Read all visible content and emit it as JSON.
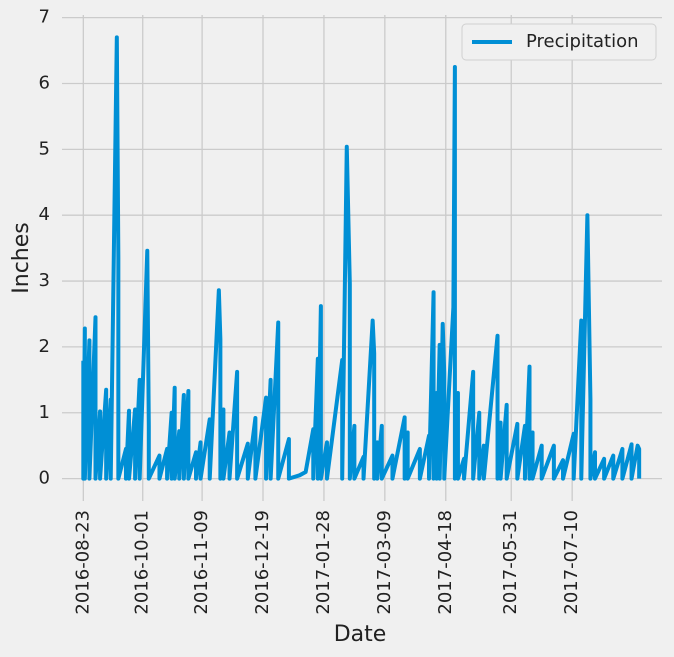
{
  "chart_data": {
    "type": "line",
    "x_label": "Date",
    "y_label": "Inches",
    "series": [
      {
        "name": "Precipitation",
        "color": "#008fd5",
        "x": [
          "2016-08-23",
          "2016-08-23",
          "2016-08-24",
          "2016-08-24",
          "2016-08-27",
          "2016-08-27",
          "2016-08-31",
          "2016-08-31",
          "2016-09-03",
          "2016-09-03",
          "2016-09-07",
          "2016-09-07",
          "2016-09-10",
          "2016-09-10",
          "2016-09-14",
          "2016-09-15",
          "2016-09-15",
          "2016-09-20",
          "2016-09-20",
          "2016-09-22",
          "2016-09-22",
          "2016-09-26",
          "2016-09-26",
          "2016-09-29",
          "2016-09-29",
          "2016-10-04",
          "2016-10-05",
          "2016-10-05",
          "2016-10-12",
          "2016-10-12",
          "2016-10-17",
          "2016-10-17",
          "2016-10-20",
          "2016-10-20",
          "2016-10-22",
          "2016-10-22",
          "2016-10-25",
          "2016-10-25",
          "2016-10-28",
          "2016-10-28",
          "2016-10-31",
          "2016-10-31",
          "2016-11-05",
          "2016-11-05",
          "2016-11-08",
          "2016-11-08",
          "2016-11-14",
          "2016-11-14",
          "2016-11-20",
          "2016-11-21",
          "2016-11-21",
          "2016-11-23",
          "2016-11-23",
          "2016-11-27",
          "2016-11-27",
          "2016-12-01",
          "2016-12-02",
          "2016-12-02",
          "2016-12-09",
          "2016-12-09",
          "2016-12-14",
          "2016-12-14",
          "2016-12-21",
          "2016-12-21",
          "2016-12-24",
          "2016-12-24",
          "2016-12-29",
          "2016-12-29",
          "2017-01-05",
          "2017-01-05",
          "2017-01-12",
          "2017-01-16",
          "2017-01-21",
          "2017-01-21",
          "2017-01-24",
          "2017-01-24",
          "2017-01-26",
          "2017-01-26",
          "2017-01-30",
          "2017-01-30",
          "2017-02-09",
          "2017-02-09",
          "2017-02-12",
          "2017-02-14",
          "2017-02-14",
          "2017-02-17",
          "2017-02-17",
          "2017-02-23",
          "2017-02-23",
          "2017-03-01",
          "2017-03-02",
          "2017-03-02",
          "2017-03-04",
          "2017-03-04",
          "2017-03-07",
          "2017-03-07",
          "2017-03-14",
          "2017-03-14",
          "2017-03-22",
          "2017-03-22",
          "2017-03-24",
          "2017-03-24",
          "2017-04-01",
          "2017-04-01",
          "2017-04-07",
          "2017-04-07",
          "2017-04-10",
          "2017-04-10",
          "2017-04-12",
          "2017-04-12",
          "2017-04-14",
          "2017-04-14",
          "2017-04-16",
          "2017-04-17",
          "2017-04-17",
          "2017-04-23",
          "2017-04-24",
          "2017-04-24",
          "2017-04-26",
          "2017-04-26",
          "2017-04-30",
          "2017-04-30",
          "2017-05-06",
          "2017-05-06",
          "2017-05-10",
          "2017-05-10",
          "2017-05-13",
          "2017-05-13",
          "2017-05-22",
          "2017-05-22",
          "2017-05-24",
          "2017-05-24",
          "2017-05-28",
          "2017-05-28",
          "2017-06-04",
          "2017-06-04",
          "2017-06-09",
          "2017-06-09",
          "2017-06-12",
          "2017-06-12",
          "2017-06-14",
          "2017-06-14",
          "2017-06-20",
          "2017-06-20",
          "2017-06-28",
          "2017-06-28",
          "2017-07-04",
          "2017-07-04",
          "2017-07-11",
          "2017-07-11",
          "2017-07-16",
          "2017-07-16",
          "2017-07-20",
          "2017-07-22",
          "2017-07-22",
          "2017-07-25",
          "2017-07-25",
          "2017-07-31",
          "2017-07-31",
          "2017-08-06",
          "2017-08-06",
          "2017-08-12",
          "2017-08-12",
          "2017-08-18",
          "2017-08-18",
          "2017-08-22",
          "2017-08-23",
          "2017-08-23"
        ],
        "values": [
          1.79,
          0,
          2.28,
          0,
          2.1,
          0,
          2.45,
          0,
          1.02,
          0,
          1.35,
          0,
          1.2,
          0,
          6.7,
          3.35,
          0,
          0.45,
          0,
          1.03,
          0,
          1.05,
          0,
          1.5,
          0,
          3.46,
          0.8,
          0,
          0.35,
          0,
          0.45,
          0,
          1.0,
          0,
          1.38,
          0,
          0.72,
          0,
          1.27,
          0,
          1.33,
          0,
          0.4,
          0,
          0.55,
          0,
          0.9,
          0,
          2.86,
          2.12,
          0,
          1.05,
          0,
          0.7,
          0,
          1.3,
          1.62,
          0,
          0.53,
          0,
          0.92,
          0,
          1.23,
          0,
          1.5,
          0,
          2.37,
          0,
          0.6,
          0,
          0.05,
          0.1,
          0.75,
          0,
          1.82,
          0,
          2.62,
          0,
          0.55,
          0,
          1.8,
          0,
          5.04,
          2.95,
          0,
          0.8,
          0,
          0.33,
          0,
          2.4,
          1.9,
          0,
          0.55,
          0,
          0.8,
          0,
          0.35,
          0,
          0.93,
          0,
          0.7,
          0,
          0.45,
          0,
          0.65,
          0,
          2.83,
          0,
          1.3,
          0,
          2.03,
          0,
          2.35,
          1.6,
          0,
          2.6,
          6.25,
          0,
          1.3,
          0,
          0.3,
          0,
          1.62,
          0,
          1.0,
          0,
          0.5,
          0,
          2.17,
          0,
          0.85,
          0,
          1.12,
          0,
          0.83,
          0,
          0.8,
          0,
          1.7,
          0,
          0.7,
          0,
          0.5,
          0,
          0.5,
          0,
          0.28,
          0,
          0.68,
          0,
          2.4,
          0,
          4.0,
          1.2,
          0,
          0.4,
          0,
          0.3,
          0,
          0.35,
          0,
          0.45,
          0,
          0.52,
          0,
          0.5,
          0.45,
          0
        ]
      }
    ],
    "xlim": [
      "2016-08-09",
      "2017-09-07"
    ],
    "xticks": [
      "2016-08-23",
      "2016-10-01",
      "2016-11-09",
      "2016-12-19",
      "2017-01-28",
      "2017-03-09",
      "2017-04-18",
      "2017-05-31",
      "2017-07-10"
    ],
    "ylim": [
      -0.34,
      7.04
    ],
    "yticks": [
      0,
      1,
      2,
      3,
      4,
      5,
      6,
      7
    ],
    "grid": true,
    "legend": "upper right"
  }
}
